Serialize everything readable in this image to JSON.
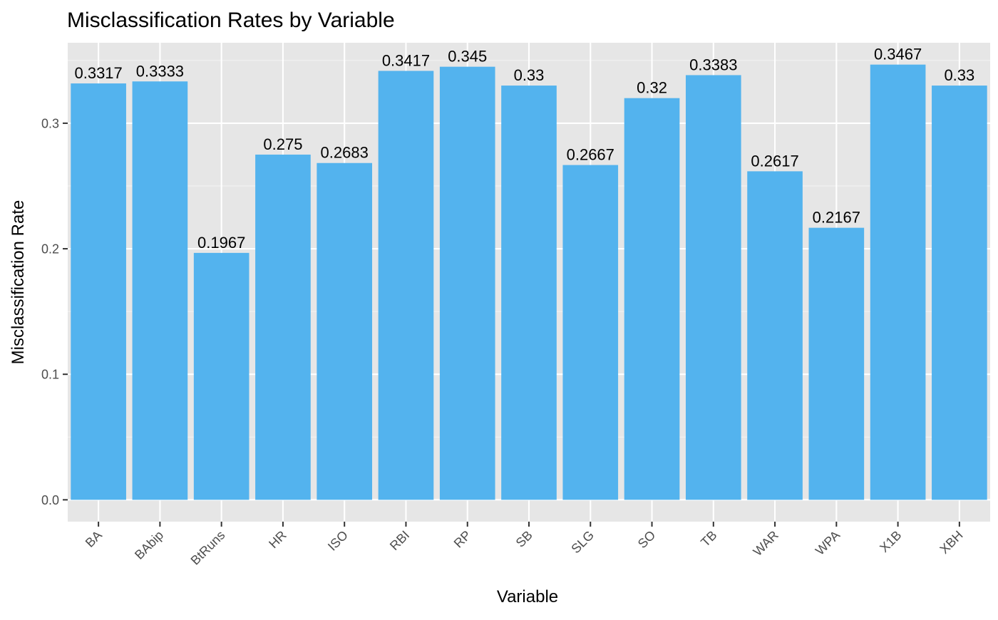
{
  "chart_data": {
    "type": "bar",
    "title": "Misclassification Rates by Variable",
    "xlabel": "Variable",
    "ylabel": "Misclassification Rate",
    "categories": [
      "BA",
      "BAbip",
      "BtRuns",
      "HR",
      "ISO",
      "RBI",
      "RP",
      "SB",
      "SLG",
      "SO",
      "TB",
      "WAR",
      "WPA",
      "X1B",
      "XBH"
    ],
    "values": [
      0.3317,
      0.3333,
      0.1967,
      0.275,
      0.2683,
      0.3417,
      0.345,
      0.33,
      0.2667,
      0.32,
      0.3383,
      0.2617,
      0.2167,
      0.3467,
      0.33
    ],
    "value_labels": [
      "0.3317",
      "0.3333",
      "0.1967",
      "0.275",
      "0.2683",
      "0.3417",
      "0.345",
      "0.33",
      "0.2667",
      "0.32",
      "0.3383",
      "0.2617",
      "0.2167",
      "0.3467",
      "0.33"
    ],
    "y_ticks": [
      0.0,
      0.1,
      0.2,
      0.3
    ],
    "y_tick_labels": [
      "0.0",
      "0.1",
      "0.2",
      "0.3"
    ],
    "ylim": [
      -0.0174,
      0.3641
    ],
    "grid": true,
    "colors": {
      "bar": "#53b3ee",
      "panel_background": "#e6e6e6",
      "grid_major": "#ffffff",
      "grid_minor": "#f2f2f2",
      "text": "#000000",
      "tick_text": "#4d4d4d",
      "tick_mark": "#333333"
    }
  }
}
